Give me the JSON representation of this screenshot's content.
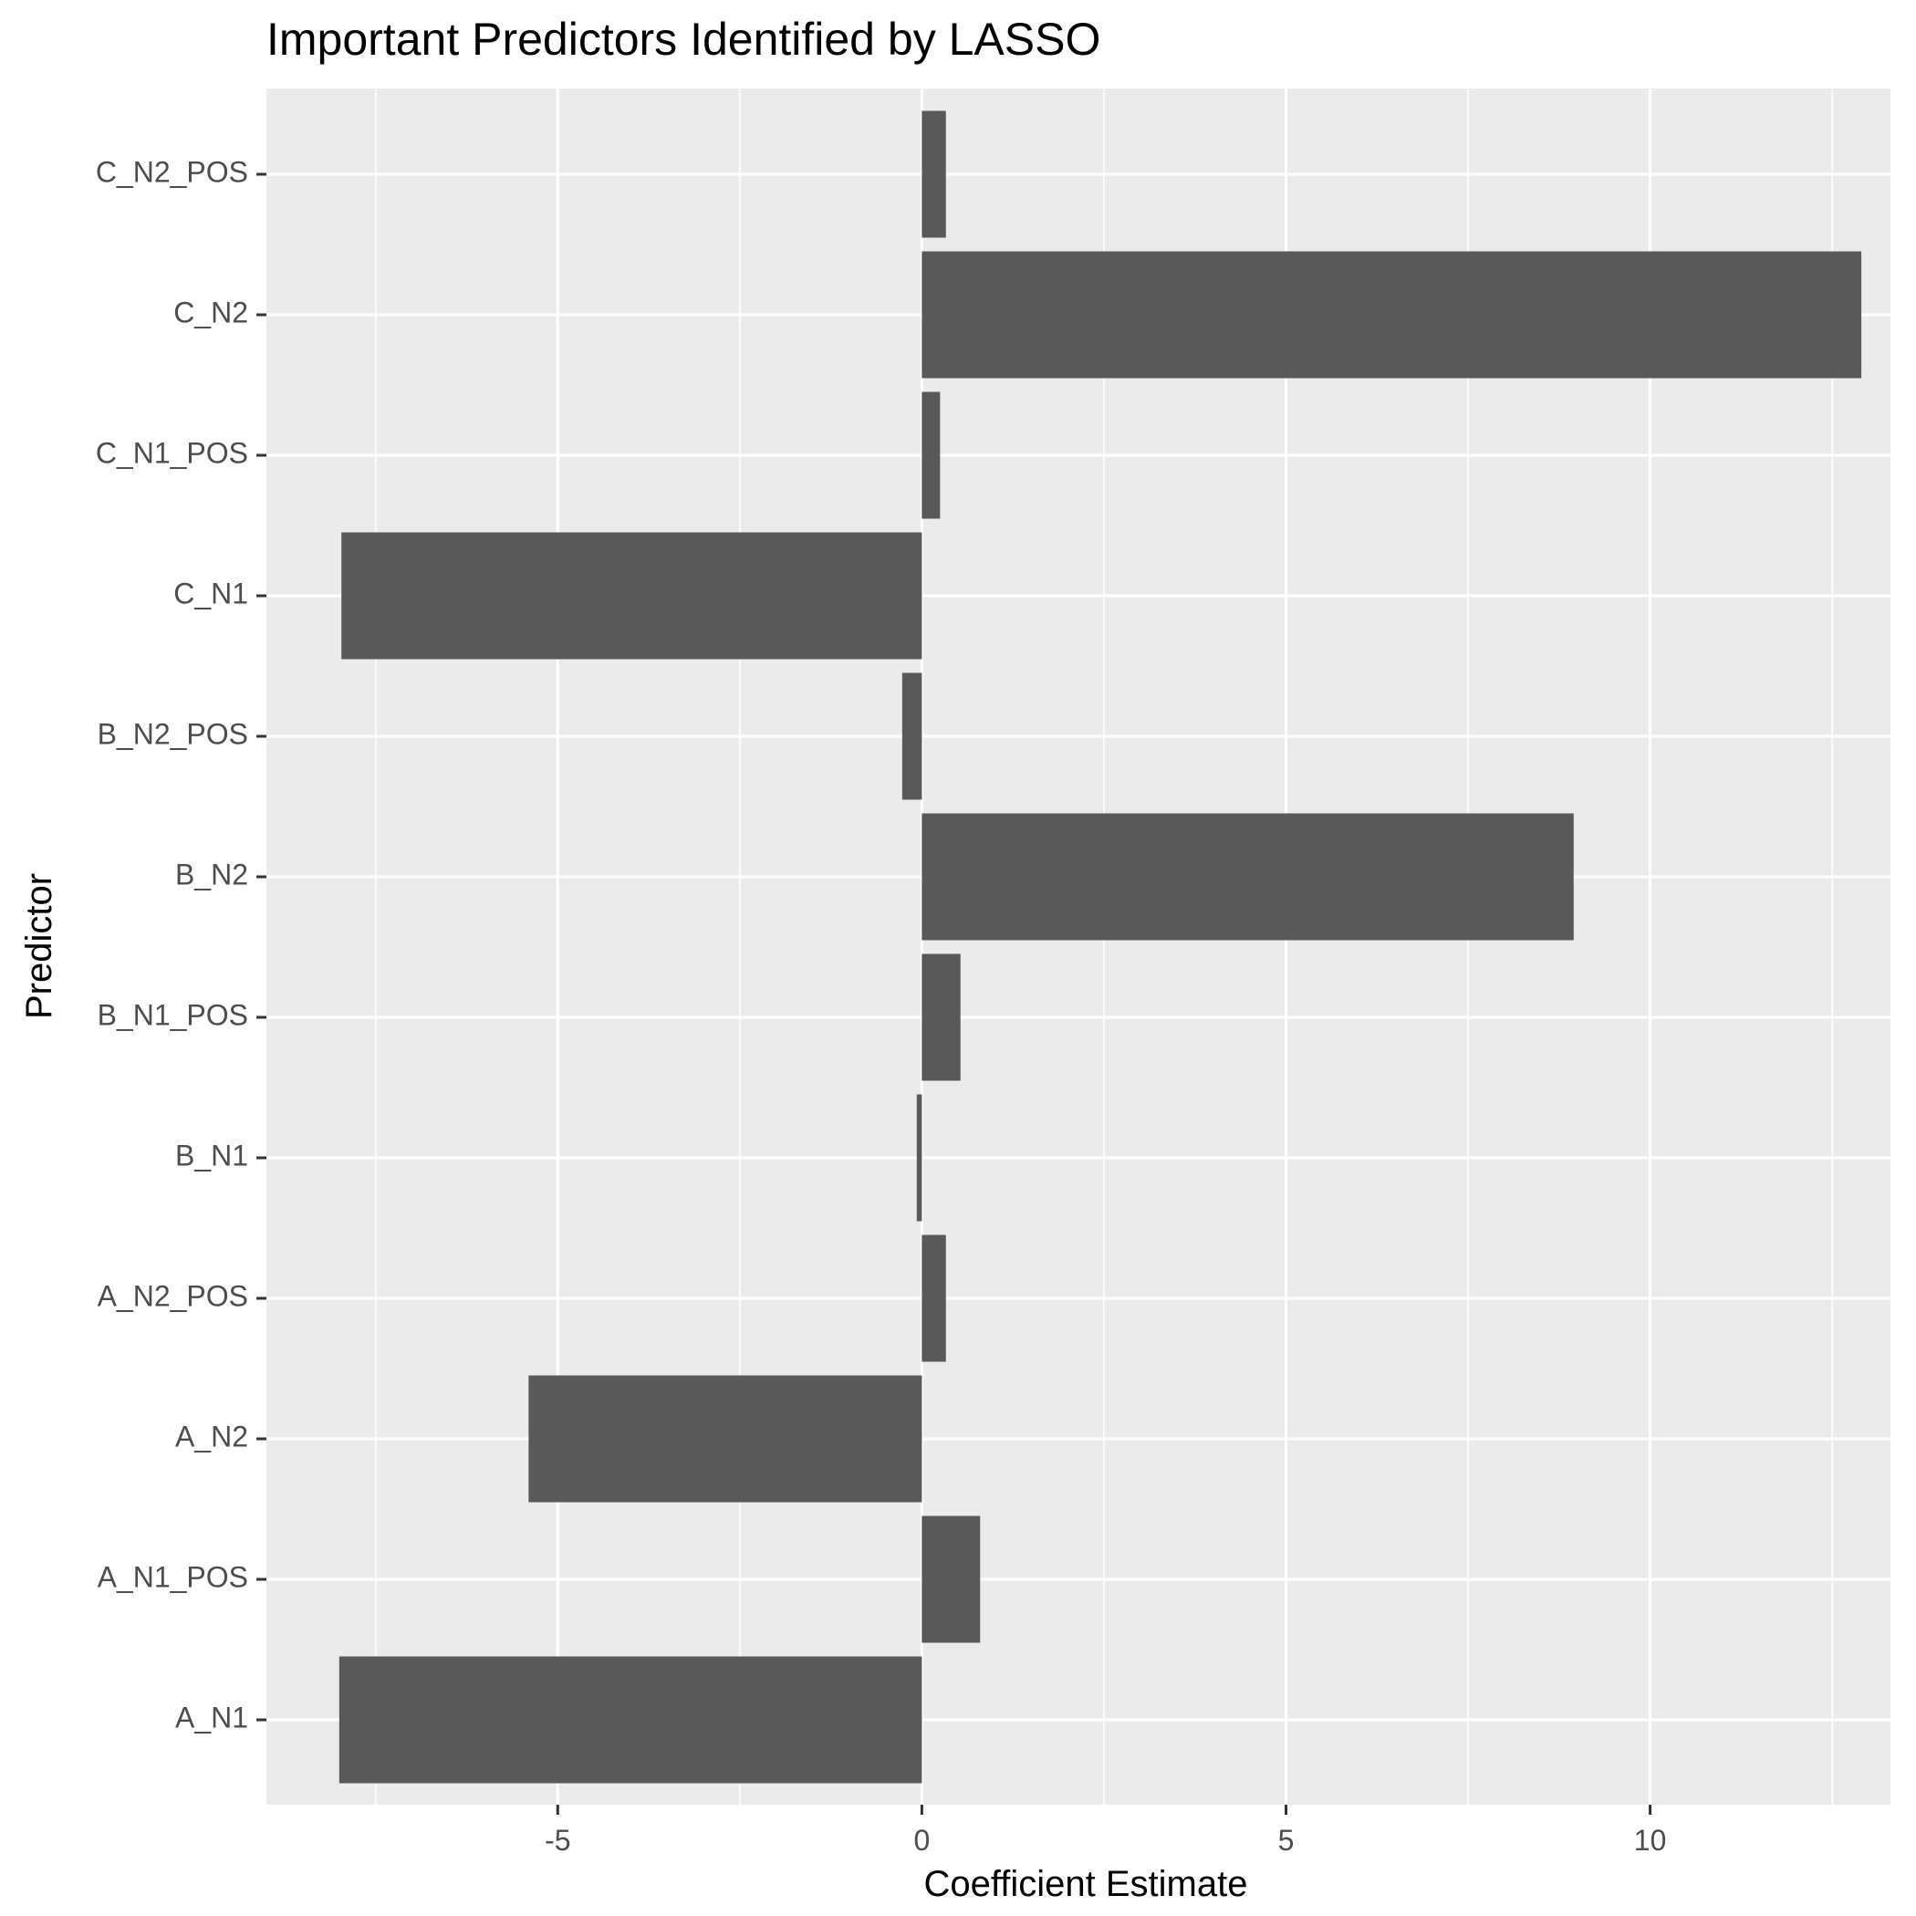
{
  "colors": {
    "panel_background": "#EBEBEB",
    "grid_major": "#FFFFFF",
    "bar_fill": "#595959",
    "tick_text": "#4D4D4D",
    "tick_mark": "#333333"
  },
  "chart_data": {
    "type": "bar",
    "orientation": "horizontal",
    "title": "Important Predictors Identified by LASSO",
    "xlabel": "Coefficient Estimate",
    "ylabel": "Predictor",
    "xlim": [
      -9,
      13.3
    ],
    "x_ticks": [
      -5,
      0,
      5,
      10
    ],
    "x_tick_labels": [
      "-5",
      "0",
      "5",
      "10"
    ],
    "grid": true,
    "legend": "none",
    "categories": [
      "A_N1",
      "A_N1_POS",
      "A_N2",
      "A_N2_POS",
      "B_N1",
      "B_N1_POS",
      "B_N2",
      "B_N2_POS",
      "C_N1",
      "C_N1_POS",
      "C_N2",
      "C_N2_POS"
    ],
    "values": [
      -8.0,
      0.8,
      -5.4,
      0.33,
      -0.07,
      0.53,
      8.95,
      -0.27,
      -7.97,
      0.25,
      12.9,
      0.33
    ]
  }
}
